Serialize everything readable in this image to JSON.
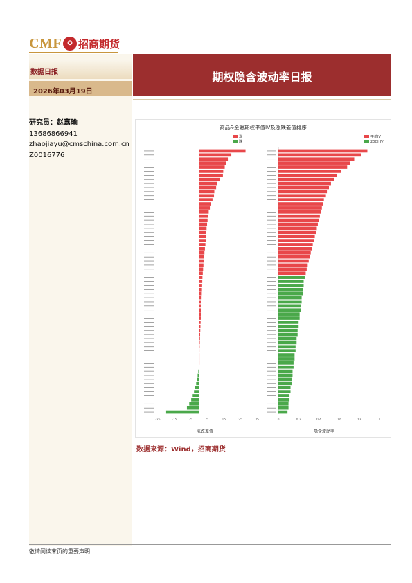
{
  "header": {
    "logo_text": "CMF",
    "logo_cn": "招商期货",
    "section": "数据日报",
    "date": "2026年03月19日",
    "title": "期权隐含波动率日报"
  },
  "analyst": {
    "label_name": "研究员：赵嘉瑜",
    "phone": "13686866941",
    "email": "zhaojiayu@cmschina.com.cn",
    "license": "Z0016776"
  },
  "colors": {
    "brand_red": "#9c2e2e",
    "up_red": "#e8474a",
    "down_green": "#4aa84a",
    "gold": "#c8963e"
  },
  "chart_data": [
    {
      "type": "bar",
      "orientation": "horizontal",
      "title": "商品&金融期权平值IV及涨跌差值排序",
      "xlabel": "涨跌差值",
      "legend": [
        "涨",
        "跌"
      ],
      "legend_position": "top-right",
      "xlim": [
        -25,
        35
      ],
      "values": [
        28.1,
        19.5,
        17.4,
        16.5,
        15.5,
        14.6,
        14.4,
        12.5,
        10.8,
        10.3,
        9.2,
        9.0,
        8.1,
        7.2,
        6.5,
        5.8,
        5.5,
        5.1,
        4.8,
        4.5,
        4.3,
        4.2,
        4.0,
        3.8,
        3.5,
        3.2,
        3.0,
        2.8,
        2.6,
        2.4,
        2.2,
        2.0,
        1.9,
        1.8,
        1.7,
        1.6,
        1.5,
        1.4,
        1.3,
        1.2,
        1.1,
        1.0,
        0.9,
        0.8,
        0.7,
        0.6,
        0.5,
        0.4,
        0.3,
        0.2,
        0.1,
        0.1,
        0.0,
        -0.2,
        -0.5,
        -0.9,
        -1.3,
        -1.8,
        -2.4,
        -3.1,
        -3.9,
        -4.8,
        -6.0,
        -7.4,
        -20.0
      ]
    },
    {
      "type": "bar",
      "orientation": "horizontal",
      "title": "",
      "xlabel": "隐含波动率",
      "legend": [
        "平值IV",
        "20日HV"
      ],
      "legend_position": "top-right",
      "xlim": [
        0,
        1.0
      ],
      "values": [
        0.88,
        0.82,
        0.75,
        0.71,
        0.68,
        0.62,
        0.58,
        0.55,
        0.52,
        0.5,
        0.48,
        0.47,
        0.45,
        0.44,
        0.43,
        0.42,
        0.41,
        0.4,
        0.39,
        0.38,
        0.37,
        0.36,
        0.35,
        0.34,
        0.33,
        0.32,
        0.31,
        0.3,
        0.29,
        0.28,
        0.27,
        0.26,
        0.25,
        0.25,
        0.24,
        0.24,
        0.23,
        0.23,
        0.22,
        0.22,
        0.21,
        0.21,
        0.2,
        0.2,
        0.19,
        0.19,
        0.18,
        0.18,
        0.17,
        0.17,
        0.16,
        0.16,
        0.15,
        0.15,
        0.14,
        0.14,
        0.13,
        0.13,
        0.12,
        0.12,
        0.11,
        0.11,
        0.1,
        0.1,
        0.09
      ],
      "split_index": 31
    }
  ],
  "source": "数据来源：Wind，招商期货",
  "footer": "敬请阅读末页的重要声明"
}
